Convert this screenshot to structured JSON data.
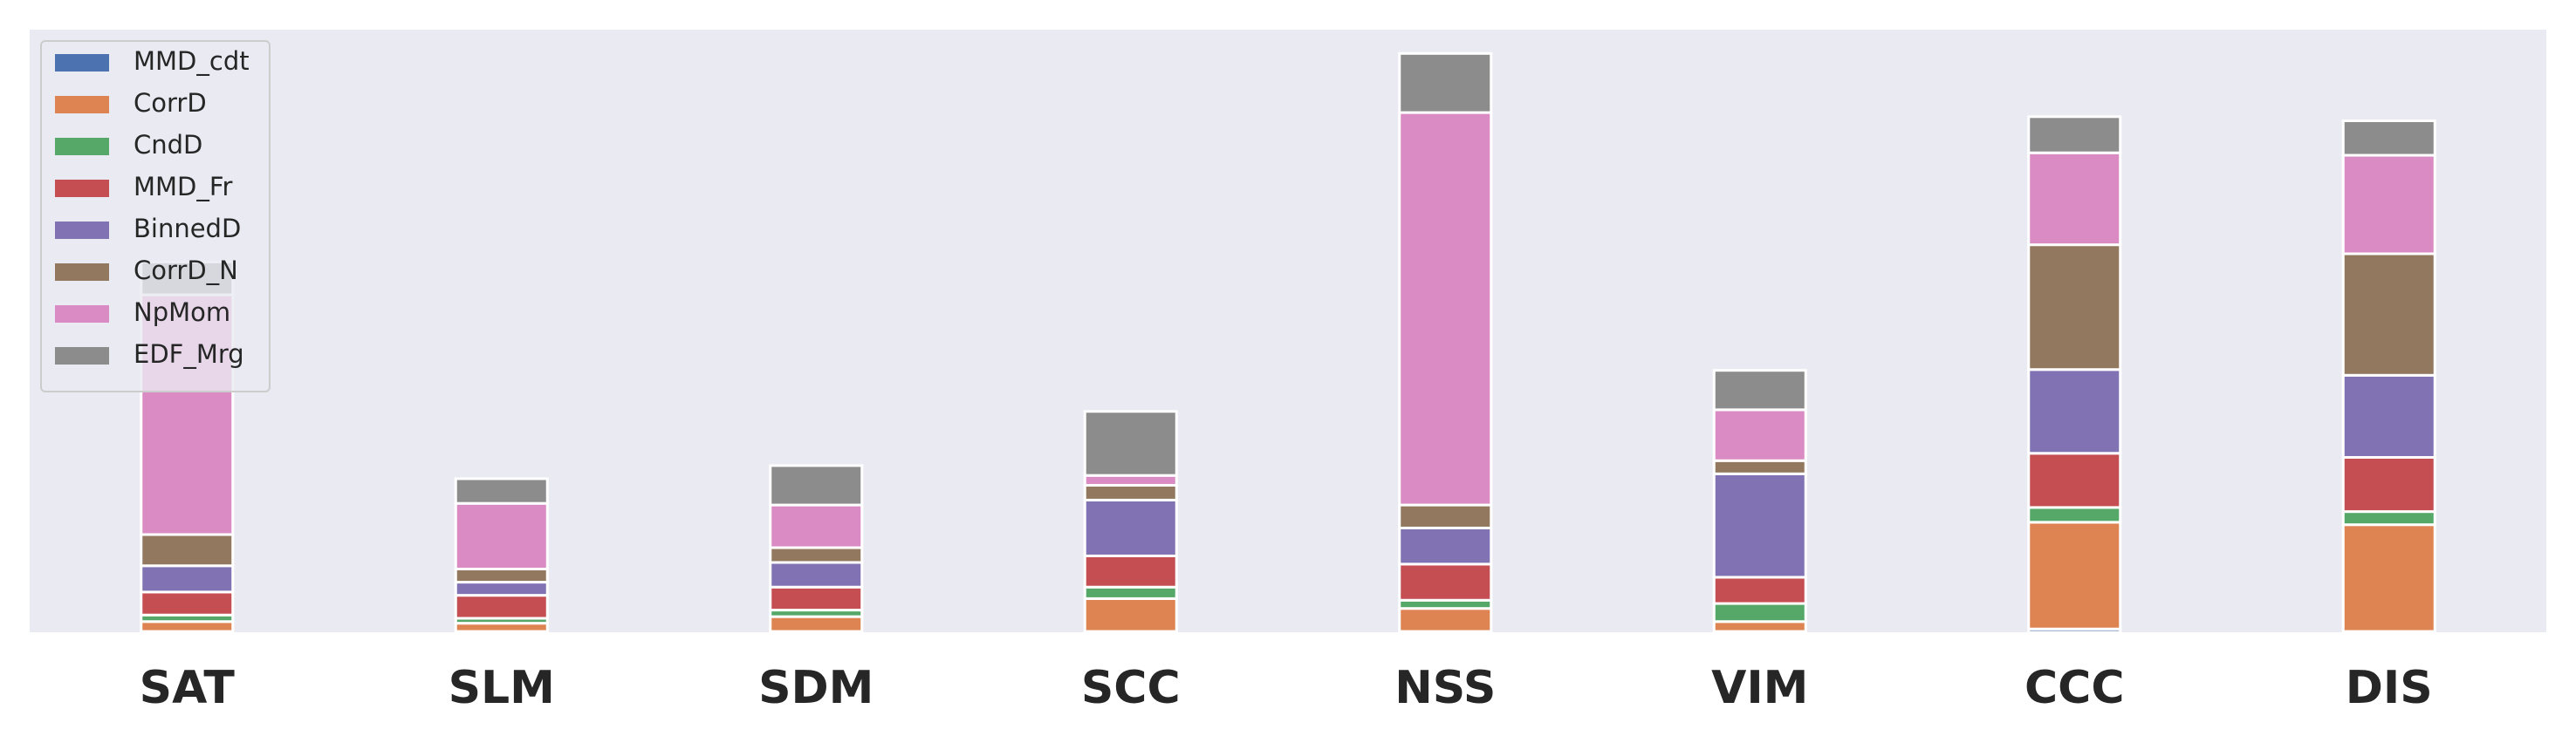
{
  "chart_data": {
    "type": "stacked_bar",
    "categories": [
      "SAT",
      "SLM",
      "SDM",
      "SCC",
      "NSS",
      "VIM",
      "CCC",
      "DIS"
    ],
    "series": [
      {
        "name": "MMD_cdt",
        "color": "#4c72b0",
        "values": [
          0.5,
          0.5,
          0.5,
          0.5,
          0.5,
          0.5,
          2,
          0.5
        ]
      },
      {
        "name": "CorrD",
        "color": "#dd8452",
        "values": [
          6,
          5,
          9,
          20,
          14,
          6,
          65,
          65
        ]
      },
      {
        "name": "CndD",
        "color": "#55a868",
        "values": [
          4,
          3,
          4,
          7,
          5,
          11,
          9,
          8
        ]
      },
      {
        "name": "MMD_Fr",
        "color": "#c44e52",
        "values": [
          14,
          14,
          14,
          19,
          22,
          16,
          33,
          33
        ]
      },
      {
        "name": "BinnedD",
        "color": "#8172b3",
        "values": [
          16,
          8,
          15,
          34,
          22,
          63,
          51,
          50
        ]
      },
      {
        "name": "CorrD_N",
        "color": "#937860",
        "values": [
          19,
          8,
          9,
          9,
          14,
          8,
          76,
          74
        ]
      },
      {
        "name": "NpMom",
        "color": "#da8bc3",
        "values": [
          146,
          40,
          26,
          6,
          239,
          31,
          56,
          60
        ]
      },
      {
        "name": "EDF_Mrg",
        "color": "#8c8c8c",
        "values": [
          20,
          15,
          24,
          39,
          36,
          24,
          22,
          21
        ]
      }
    ],
    "ylim": [
      0,
      367
    ],
    "legend": "upper left",
    "background": "#eaeaf2"
  }
}
